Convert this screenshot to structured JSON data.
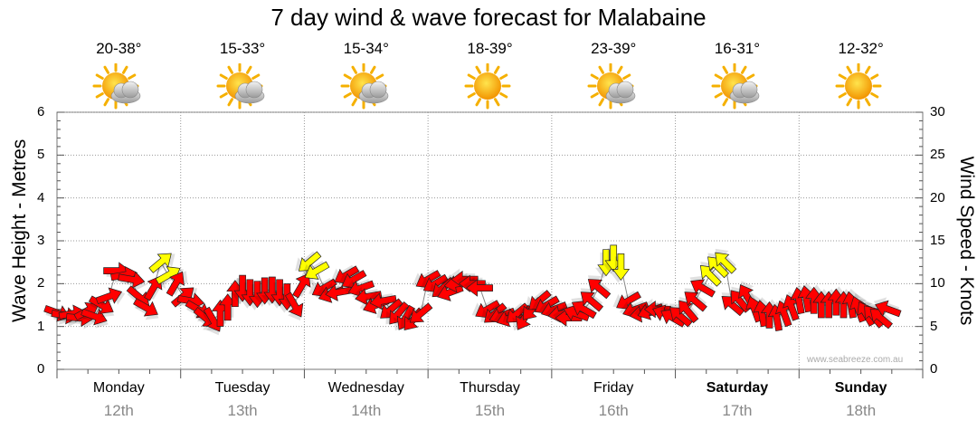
{
  "title": "7 day wind & wave forecast for Malabaine",
  "ylabel_left": "Wave Height - Metres",
  "ylabel_right": "Wind Speed - Knots",
  "watermark": "www.seabreeze.com.au",
  "days": [
    {
      "name": "Monday",
      "date": "12th",
      "temp": "20-38°",
      "icon": "partly-cloudy-icon",
      "bold": false
    },
    {
      "name": "Tuesday",
      "date": "13th",
      "temp": "15-33°",
      "icon": "partly-cloudy-icon",
      "bold": false
    },
    {
      "name": "Wednesday",
      "date": "14th",
      "temp": "15-34°",
      "icon": "partly-cloudy-icon",
      "bold": false
    },
    {
      "name": "Thursday",
      "date": "15th",
      "temp": "18-39°",
      "icon": "sunny-icon",
      "bold": false
    },
    {
      "name": "Friday",
      "date": "16th",
      "temp": "23-39°",
      "icon": "partly-cloudy-icon",
      "bold": false
    },
    {
      "name": "Saturday",
      "date": "17th",
      "temp": "16-31°",
      "icon": "partly-cloudy-icon",
      "bold": true
    },
    {
      "name": "Sunday",
      "date": "18th",
      "temp": "12-32°",
      "icon": "sunny-icon",
      "bold": true
    }
  ],
  "chart_data": {
    "type": "line",
    "title": "7 day wind & wave forecast for Malabaine",
    "ylabel": "Wave Height - Metres",
    "y2label": "Wind Speed - Knots",
    "ylim": [
      0,
      6
    ],
    "y2lim": [
      0,
      30
    ],
    "yticks": [
      "0",
      "1",
      "2",
      "3",
      "4",
      "5",
      "6"
    ],
    "y2ticks": [
      "0",
      "5",
      "10",
      "15",
      "20",
      "25",
      "30"
    ],
    "grid": true,
    "x_unit": "day index (0 = Monday 00:00, 7 = Sunday 24:00)",
    "series": [
      {
        "name": "wind",
        "colors": {
          "strong": "#ff0000",
          "light": "#ffff00"
        },
        "points": [
          [
            0.0,
            6.6,
            20,
            "strong"
          ],
          [
            0.06,
            6.3,
            10,
            "strong"
          ],
          [
            0.12,
            6.5,
            -10,
            "strong"
          ],
          [
            0.18,
            6.0,
            5,
            "strong"
          ],
          [
            0.24,
            6.8,
            -30,
            "strong"
          ],
          [
            0.3,
            6.2,
            20,
            "strong"
          ],
          [
            0.36,
            7.5,
            30,
            "strong"
          ],
          [
            0.42,
            8.5,
            -20,
            "strong"
          ],
          [
            0.48,
            11.5,
            0,
            "strong"
          ],
          [
            0.54,
            11.0,
            -10,
            "strong"
          ],
          [
            0.6,
            10.5,
            10,
            "strong"
          ],
          [
            0.66,
            8.5,
            40,
            "strong"
          ],
          [
            0.72,
            7.2,
            30,
            "strong"
          ],
          [
            0.78,
            9.5,
            -60,
            "strong"
          ],
          [
            0.84,
            12.5,
            -40,
            "light"
          ],
          [
            0.9,
            11.0,
            -30,
            "light"
          ],
          [
            0.96,
            10.0,
            -60,
            "strong"
          ],
          [
            1.02,
            8.5,
            -40,
            "strong"
          ],
          [
            1.08,
            8.0,
            10,
            "strong"
          ],
          [
            1.14,
            7.0,
            30,
            "strong"
          ],
          [
            1.2,
            6.0,
            40,
            "strong"
          ],
          [
            1.26,
            5.8,
            60,
            "strong"
          ],
          [
            1.32,
            6.5,
            -90,
            "strong"
          ],
          [
            1.38,
            7.2,
            -90,
            "strong"
          ],
          [
            1.44,
            8.8,
            -90,
            "strong"
          ],
          [
            1.5,
            9.5,
            90,
            "strong"
          ],
          [
            1.56,
            9.0,
            90,
            "strong"
          ],
          [
            1.62,
            8.8,
            90,
            "strong"
          ],
          [
            1.68,
            9.2,
            90,
            "strong"
          ],
          [
            1.74,
            9.3,
            90,
            "strong"
          ],
          [
            1.8,
            9.0,
            90,
            "strong"
          ],
          [
            1.86,
            8.5,
            90,
            "strong"
          ],
          [
            1.92,
            7.5,
            60,
            "strong"
          ],
          [
            1.98,
            9.8,
            -60,
            "strong"
          ],
          [
            2.04,
            12.5,
            140,
            "light"
          ],
          [
            2.1,
            11.5,
            150,
            "light"
          ],
          [
            2.16,
            9.5,
            150,
            "strong"
          ],
          [
            2.22,
            8.8,
            160,
            "strong"
          ],
          [
            2.28,
            9.0,
            170,
            "strong"
          ],
          [
            2.34,
            11.0,
            150,
            "strong"
          ],
          [
            2.4,
            10.5,
            150,
            "strong"
          ],
          [
            2.46,
            9.5,
            160,
            "strong"
          ],
          [
            2.52,
            8.5,
            170,
            "strong"
          ],
          [
            2.58,
            7.5,
            160,
            "strong"
          ],
          [
            2.64,
            8.0,
            170,
            "strong"
          ],
          [
            2.7,
            7.0,
            140,
            "strong"
          ],
          [
            2.76,
            6.5,
            130,
            "strong"
          ],
          [
            2.82,
            6.0,
            120,
            "strong"
          ],
          [
            2.88,
            5.8,
            130,
            "strong"
          ],
          [
            2.94,
            6.5,
            140,
            "strong"
          ],
          [
            3.0,
            10.5,
            150,
            "strong"
          ],
          [
            3.06,
            10.0,
            150,
            "strong"
          ],
          [
            3.12,
            9.5,
            140,
            "strong"
          ],
          [
            3.18,
            9.0,
            160,
            "strong"
          ],
          [
            3.24,
            10.0,
            170,
            "strong"
          ],
          [
            3.3,
            10.5,
            180,
            "strong"
          ],
          [
            3.36,
            10.0,
            180,
            "strong"
          ],
          [
            3.42,
            9.5,
            180,
            "strong"
          ],
          [
            3.48,
            7.0,
            150,
            "strong"
          ],
          [
            3.54,
            6.5,
            140,
            "strong"
          ],
          [
            3.6,
            6.3,
            160,
            "strong"
          ],
          [
            3.66,
            6.0,
            160,
            "strong"
          ],
          [
            3.72,
            6.5,
            140,
            "strong"
          ],
          [
            3.78,
            6.0,
            120,
            "strong"
          ],
          [
            3.84,
            7.0,
            130,
            "strong"
          ],
          [
            3.9,
            8.0,
            140,
            "strong"
          ],
          [
            3.96,
            7.5,
            150,
            "strong"
          ],
          [
            4.02,
            7.0,
            160,
            "strong"
          ],
          [
            4.08,
            6.5,
            170,
            "strong"
          ],
          [
            4.14,
            6.0,
            180,
            "strong"
          ],
          [
            4.2,
            6.5,
            200,
            "strong"
          ],
          [
            4.26,
            7.0,
            210,
            "strong"
          ],
          [
            4.32,
            8.0,
            220,
            "strong"
          ],
          [
            4.38,
            9.5,
            220,
            "strong"
          ],
          [
            4.44,
            12.5,
            90,
            "light"
          ],
          [
            4.5,
            13.0,
            90,
            "light"
          ],
          [
            4.56,
            12.0,
            90,
            "light"
          ],
          [
            4.62,
            8.0,
            150,
            "strong"
          ],
          [
            4.68,
            7.0,
            160,
            "strong"
          ],
          [
            4.74,
            6.5,
            170,
            "strong"
          ],
          [
            4.8,
            6.8,
            160,
            "strong"
          ],
          [
            4.86,
            7.0,
            180,
            "strong"
          ],
          [
            4.92,
            6.5,
            200,
            "strong"
          ],
          [
            4.98,
            6.0,
            210,
            "strong"
          ],
          [
            5.04,
            6.2,
            220,
            "strong"
          ],
          [
            5.1,
            6.8,
            230,
            "strong"
          ],
          [
            5.16,
            8.0,
            220,
            "strong"
          ],
          [
            5.22,
            9.5,
            210,
            "strong"
          ],
          [
            5.28,
            11.0,
            225,
            "light"
          ],
          [
            5.34,
            12.0,
            225,
            "light"
          ],
          [
            5.4,
            12.5,
            225,
            "light"
          ],
          [
            5.46,
            7.5,
            220,
            "strong"
          ],
          [
            5.52,
            8.0,
            230,
            "strong"
          ],
          [
            5.58,
            8.5,
            240,
            "strong"
          ],
          [
            5.64,
            7.0,
            250,
            "strong"
          ],
          [
            5.7,
            6.5,
            260,
            "strong"
          ],
          [
            5.76,
            6.3,
            270,
            "strong"
          ],
          [
            5.82,
            6.0,
            260,
            "strong"
          ],
          [
            5.88,
            6.5,
            250,
            "strong"
          ],
          [
            5.94,
            7.2,
            250,
            "strong"
          ],
          [
            6.0,
            8.0,
            260,
            "strong"
          ],
          [
            6.06,
            8.2,
            260,
            "strong"
          ],
          [
            6.12,
            8.0,
            270,
            "strong"
          ],
          [
            6.18,
            7.5,
            270,
            "strong"
          ],
          [
            6.24,
            7.5,
            270,
            "strong"
          ],
          [
            6.3,
            7.8,
            270,
            "strong"
          ],
          [
            6.36,
            7.5,
            270,
            "strong"
          ],
          [
            6.42,
            7.5,
            260,
            "strong"
          ],
          [
            6.48,
            7.0,
            250,
            "strong"
          ],
          [
            6.54,
            6.5,
            240,
            "strong"
          ],
          [
            6.6,
            6.2,
            230,
            "strong"
          ],
          [
            6.66,
            6.0,
            220,
            "strong"
          ],
          [
            6.72,
            7.0,
            200,
            "strong"
          ]
        ]
      }
    ]
  }
}
